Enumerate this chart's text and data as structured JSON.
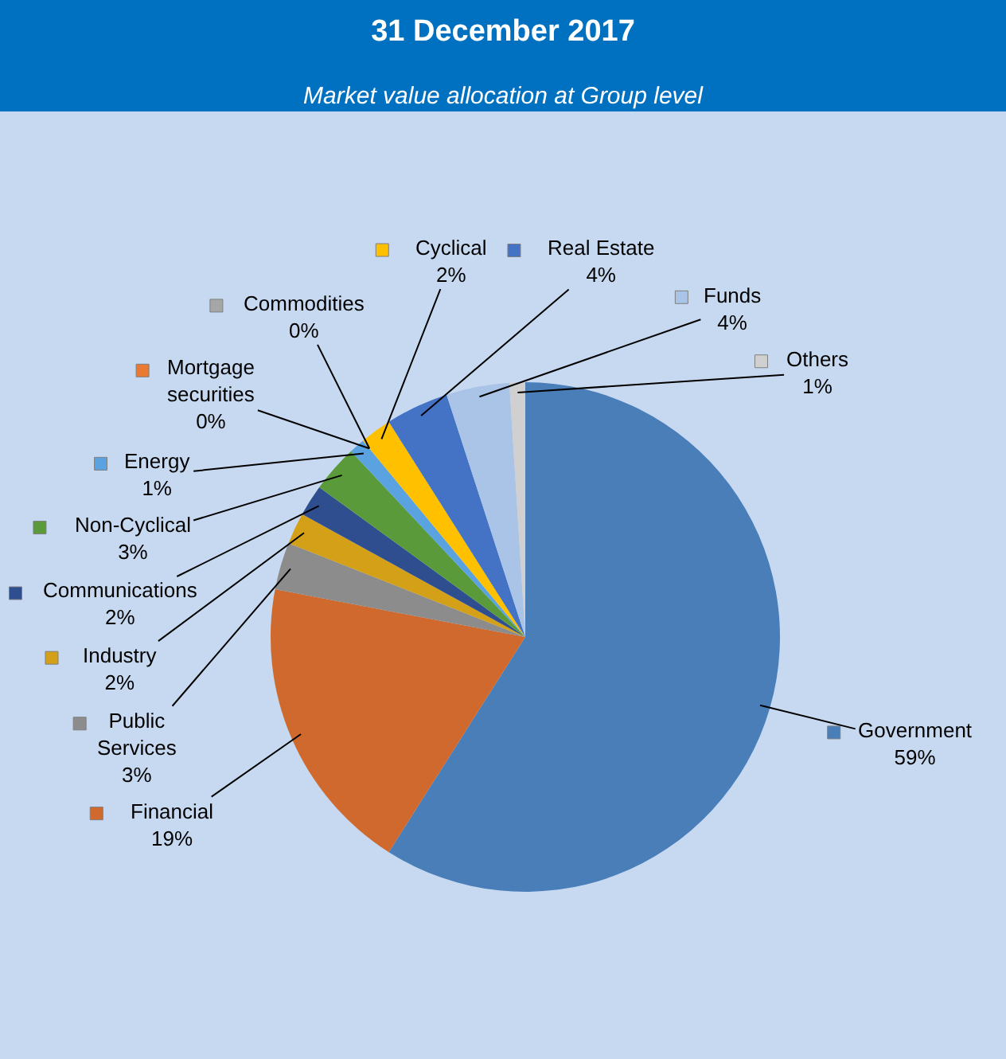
{
  "chart_data": {
    "type": "pie",
    "title": "31 December 2017",
    "subtitle": "Market value allocation at Group level",
    "categories": [
      "Government",
      "Financial",
      "Public Services",
      "Industry",
      "Communications",
      "Non-Cyclical",
      "Energy",
      "Mortgage securities",
      "Commodities",
      "Cyclical",
      "Real Estate",
      "Funds",
      "Others"
    ],
    "values": [
      59,
      19,
      3,
      2,
      2,
      3,
      1,
      0,
      0,
      2,
      4,
      4,
      1
    ],
    "value_labels": [
      "59%",
      "19%",
      "3%",
      "2%",
      "2%",
      "3%",
      "1%",
      "0%",
      "0%",
      "2%",
      "4%",
      "4%",
      "1%"
    ],
    "legend": "left",
    "colors": [
      "#4a7eb8",
      "#d0692e",
      "#8c8c8c",
      "#d4a017",
      "#2e4e8f",
      "#5a9a3a",
      "#5ba3e0",
      "#e87a33",
      "#a6a6a6",
      "#ffc000",
      "#4472c4",
      "#a9c4e6",
      "#d0d0d0"
    ]
  }
}
